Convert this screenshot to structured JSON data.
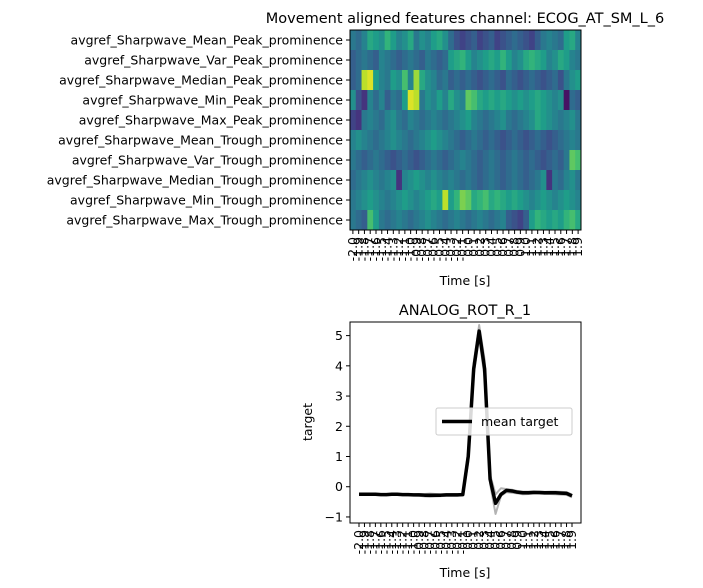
{
  "chart_data": [
    {
      "type": "heatmap",
      "title": "Movement aligned features channel: ECOG_AT_SM_L_6",
      "xlabel": "Time [s]",
      "colormap": "viridis",
      "rows": [
        "avgref_Sharpwave_Mean_Peak_prominence",
        "avgref_Sharpwave_Var_Peak_prominence",
        "avgref_Sharpwave_Median_Peak_prominence",
        "avgref_Sharpwave_Min_Peak_prominence",
        "avgref_Sharpwave_Max_Peak_prominence",
        "avgref_Sharpwave_Mean_Trough_prominence",
        "avgref_Sharpwave_Var_Trough_prominence",
        "avgref_Sharpwave_Median_Trough_prominence",
        "avgref_Sharpwave_Min_Trough_prominence",
        "avgref_Sharpwave_Max_Trough_prominence"
      ],
      "xticklabels": [
        "-2.0",
        "-1.9",
        "-1.8",
        "-1.7",
        "-1.6",
        "-1.5",
        "-1.4",
        "-1.3",
        "-1.2",
        "-1.1",
        "-1.0",
        "-0.9",
        "-0.8",
        "-0.7",
        "-0.6",
        "-0.5",
        "-0.4",
        "-0.3",
        "-0.2",
        "-0.1",
        "0.0",
        "0.1",
        "0.2",
        "0.3",
        "0.4",
        "0.5",
        "0.6",
        "0.7",
        "0.8",
        "0.9",
        "1.0",
        "1.1",
        "1.2",
        "1.3",
        "1.4",
        "1.5",
        "1.6",
        "1.7",
        "1.8",
        "1.9"
      ],
      "values": [
        [
          0.4,
          0.35,
          0.45,
          0.6,
          0.55,
          0.5,
          0.65,
          0.55,
          0.45,
          0.5,
          0.6,
          0.4,
          0.5,
          0.45,
          0.55,
          0.6,
          0.5,
          0.35,
          0.25,
          0.2,
          0.25,
          0.3,
          0.2,
          0.25,
          0.3,
          0.2,
          0.25,
          0.3,
          0.35,
          0.3,
          0.25,
          0.2,
          0.3,
          0.4,
          0.45,
          0.4,
          0.35,
          0.55,
          0.6,
          0.45
        ],
        [
          0.3,
          0.35,
          0.4,
          0.35,
          0.3,
          0.45,
          0.4,
          0.35,
          0.3,
          0.35,
          0.4,
          0.35,
          0.3,
          0.4,
          0.35,
          0.3,
          0.35,
          0.55,
          0.6,
          0.65,
          0.55,
          0.45,
          0.5,
          0.55,
          0.6,
          0.55,
          0.65,
          0.55,
          0.45,
          0.5,
          0.6,
          0.65,
          0.6,
          0.55,
          0.45,
          0.5,
          0.6,
          0.55,
          0.45,
          0.4
        ],
        [
          0.3,
          0.35,
          0.9,
          0.95,
          0.55,
          0.45,
          0.4,
          0.55,
          0.5,
          0.7,
          0.45,
          0.85,
          0.6,
          0.5,
          0.45,
          0.35,
          0.4,
          0.3,
          0.35,
          0.3,
          0.35,
          0.3,
          0.25,
          0.3,
          0.35,
          0.3,
          0.25,
          0.35,
          0.3,
          0.25,
          0.3,
          0.35,
          0.3,
          0.25,
          0.3,
          0.35,
          0.25,
          0.4,
          0.5,
          0.55
        ],
        [
          0.5,
          0.25,
          0.15,
          0.45,
          0.35,
          0.45,
          0.3,
          0.4,
          0.35,
          0.55,
          0.95,
          0.9,
          0.4,
          0.5,
          0.45,
          0.55,
          0.45,
          0.6,
          0.5,
          0.45,
          0.75,
          0.7,
          0.6,
          0.55,
          0.6,
          0.55,
          0.6,
          0.55,
          0.5,
          0.55,
          0.5,
          0.55,
          0.6,
          0.55,
          0.5,
          0.45,
          0.5,
          0.05,
          0.35,
          0.3
        ],
        [
          0.2,
          0.15,
          0.4,
          0.45,
          0.4,
          0.35,
          0.45,
          0.5,
          0.4,
          0.35,
          0.45,
          0.4,
          0.35,
          0.4,
          0.45,
          0.4,
          0.35,
          0.4,
          0.45,
          0.5,
          0.55,
          0.45,
          0.4,
          0.35,
          0.4,
          0.45,
          0.5,
          0.4,
          0.35,
          0.4,
          0.45,
          0.5,
          0.6,
          0.55,
          0.5,
          0.45,
          0.4,
          0.45,
          0.5,
          0.4
        ],
        [
          0.45,
          0.5,
          0.45,
          0.4,
          0.35,
          0.4,
          0.45,
          0.5,
          0.45,
          0.4,
          0.35,
          0.4,
          0.45,
          0.5,
          0.55,
          0.5,
          0.45,
          0.4,
          0.35,
          0.3,
          0.35,
          0.4,
          0.35,
          0.3,
          0.35,
          0.3,
          0.25,
          0.3,
          0.35,
          0.3,
          0.25,
          0.3,
          0.35,
          0.3,
          0.25,
          0.3,
          0.35,
          0.4,
          0.45,
          0.4
        ],
        [
          0.4,
          0.35,
          0.3,
          0.35,
          0.4,
          0.35,
          0.3,
          0.25,
          0.3,
          0.35,
          0.3,
          0.25,
          0.3,
          0.35,
          0.4,
          0.35,
          0.3,
          0.35,
          0.4,
          0.45,
          0.4,
          0.35,
          0.3,
          0.35,
          0.4,
          0.35,
          0.3,
          0.35,
          0.4,
          0.35,
          0.3,
          0.35,
          0.3,
          0.25,
          0.3,
          0.35,
          0.3,
          0.4,
          0.75,
          0.7
        ],
        [
          0.35,
          0.4,
          0.45,
          0.5,
          0.45,
          0.4,
          0.45,
          0.5,
          0.15,
          0.45,
          0.5,
          0.55,
          0.5,
          0.45,
          0.5,
          0.45,
          0.4,
          0.45,
          0.4,
          0.35,
          0.4,
          0.35,
          0.3,
          0.35,
          0.4,
          0.35,
          0.3,
          0.35,
          0.4,
          0.35,
          0.3,
          0.35,
          0.4,
          0.5,
          0.15,
          0.4,
          0.35,
          0.45,
          0.5,
          0.4
        ],
        [
          0.4,
          0.45,
          0.5,
          0.55,
          0.5,
          0.45,
          0.4,
          0.45,
          0.5,
          0.55,
          0.5,
          0.45,
          0.5,
          0.55,
          0.6,
          0.55,
          0.9,
          0.55,
          0.65,
          0.8,
          0.75,
          0.6,
          0.65,
          0.7,
          0.6,
          0.65,
          0.6,
          0.55,
          0.6,
          0.55,
          0.5,
          0.45,
          0.5,
          0.55,
          0.5,
          0.45,
          0.5,
          0.55,
          0.5,
          0.45
        ],
        [
          0.4,
          0.35,
          0.3,
          0.7,
          0.55,
          0.4,
          0.35,
          0.4,
          0.45,
          0.4,
          0.35,
          0.4,
          0.45,
          0.5,
          0.45,
          0.4,
          0.35,
          0.4,
          0.45,
          0.4,
          0.35,
          0.4,
          0.45,
          0.4,
          0.35,
          0.4,
          0.45,
          0.3,
          0.25,
          0.2,
          0.3,
          0.55,
          0.65,
          0.6,
          0.55,
          0.6,
          0.55,
          0.65,
          0.7,
          0.6
        ]
      ]
    },
    {
      "type": "line",
      "title": "ANALOG_ROT_R_1",
      "xlabel": "Time [s]",
      "ylabel": "target",
      "ylim": [
        -1.2,
        5.45
      ],
      "yticks": [
        -1,
        0,
        1,
        2,
        3,
        4,
        5
      ],
      "xticklabels": [
        "-2.0",
        "-1.9",
        "-1.8",
        "-1.7",
        "-1.6",
        "-1.5",
        "-1.4",
        "-1.3",
        "-1.2",
        "-1.1",
        "-1.0",
        "-0.9",
        "-0.8",
        "-0.7",
        "-0.6",
        "-0.5",
        "-0.4",
        "-0.3",
        "-0.2",
        "-0.1",
        "0.0",
        "0.1",
        "0.2",
        "0.3",
        "0.4",
        "0.5",
        "0.6",
        "0.7",
        "0.8",
        "0.9",
        "1.0",
        "1.1",
        "1.2",
        "1.3",
        "1.4",
        "1.5",
        "1.6",
        "1.7",
        "1.8",
        "1.9"
      ],
      "legend": {
        "entries": [
          "mean target"
        ],
        "placement": "center-right"
      },
      "series": [
        {
          "name": "mean target",
          "color": "#000000",
          "role": "mean",
          "values": [
            -0.25,
            -0.25,
            -0.25,
            -0.25,
            -0.26,
            -0.26,
            -0.25,
            -0.25,
            -0.26,
            -0.26,
            -0.27,
            -0.27,
            -0.28,
            -0.28,
            -0.28,
            -0.28,
            -0.27,
            -0.27,
            -0.27,
            -0.26,
            1.0,
            3.9,
            5.15,
            3.9,
            0.25,
            -0.55,
            -0.25,
            -0.12,
            -0.14,
            -0.18,
            -0.2,
            -0.2,
            -0.19,
            -0.19,
            -0.2,
            -0.2,
            -0.2,
            -0.21,
            -0.22,
            -0.3
          ]
        },
        {
          "color": "#808080",
          "role": "trial",
          "values": [
            -0.26,
            -0.26,
            -0.27,
            -0.27,
            -0.27,
            -0.28,
            -0.27,
            -0.26,
            -0.27,
            -0.28,
            -0.29,
            -0.3,
            -0.32,
            -0.33,
            -0.32,
            -0.31,
            -0.3,
            -0.3,
            -0.3,
            -0.28,
            0.8,
            3.7,
            4.95,
            3.6,
            0.1,
            -0.9,
            -0.3,
            -0.18,
            -0.2,
            -0.22,
            -0.25,
            -0.24,
            -0.22,
            -0.23,
            -0.24,
            -0.24,
            -0.25,
            -0.26,
            -0.27,
            -0.35
          ]
        },
        {
          "color": "#808080",
          "role": "trial",
          "values": [
            -0.24,
            -0.24,
            -0.24,
            -0.23,
            -0.24,
            -0.25,
            -0.24,
            -0.24,
            -0.25,
            -0.25,
            -0.25,
            -0.24,
            -0.24,
            -0.23,
            -0.24,
            -0.25,
            -0.24,
            -0.24,
            -0.24,
            -0.24,
            1.2,
            4.1,
            5.35,
            4.2,
            0.4,
            -0.25,
            -0.05,
            -0.08,
            -0.1,
            -0.14,
            -0.16,
            -0.16,
            -0.15,
            -0.16,
            -0.17,
            -0.16,
            -0.16,
            -0.17,
            -0.18,
            -0.26
          ]
        }
      ]
    }
  ]
}
